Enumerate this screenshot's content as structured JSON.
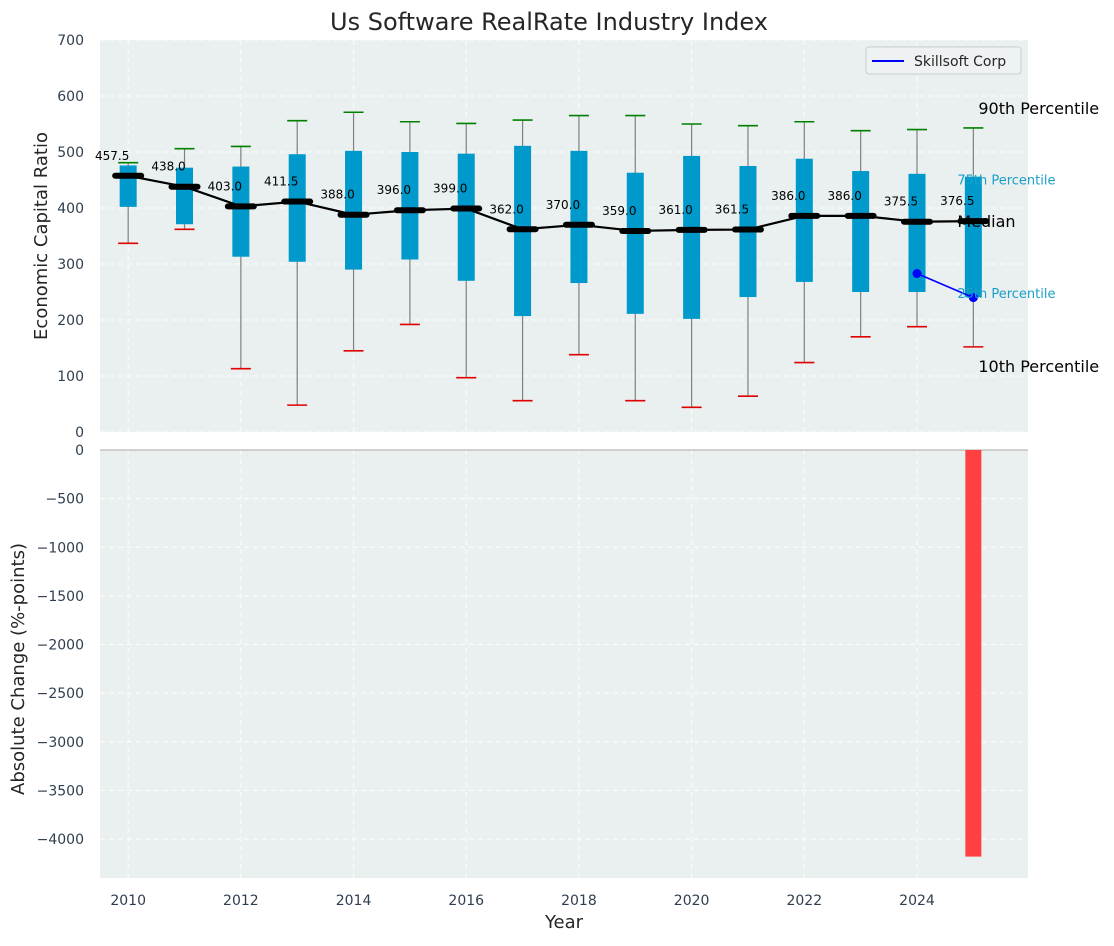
{
  "chart_data": [
    {
      "type": "box",
      "title": "Us Software RealRate Industry Index",
      "ylabel": "Economic Capital Ratio",
      "ylim": [
        0,
        700
      ],
      "yticks": [
        0,
        100,
        200,
        300,
        400,
        500,
        600,
        700
      ],
      "grid": true,
      "years": [
        2010,
        2011,
        2012,
        2013,
        2014,
        2015,
        2016,
        2017,
        2018,
        2019,
        2020,
        2021,
        2022,
        2023,
        2024,
        2025
      ],
      "p10": [
        337,
        362,
        113,
        48,
        145,
        192,
        97,
        56,
        138,
        56,
        44,
        64,
        124,
        170,
        188,
        152
      ],
      "p25": [
        402,
        371,
        313,
        304,
        290,
        308,
        270,
        207,
        266,
        211,
        202,
        241,
        268,
        250,
        250,
        241
      ],
      "median": [
        457.5,
        438.0,
        403.0,
        411.5,
        388.0,
        396.0,
        399.0,
        362.0,
        370.0,
        359.0,
        361.0,
        361.5,
        386.0,
        386.0,
        375.5,
        376.5
      ],
      "p75": [
        476,
        472,
        474,
        496,
        502,
        500,
        497,
        511,
        502,
        463,
        493,
        475,
        488,
        466,
        461,
        456
      ],
      "p90": [
        481,
        506,
        510,
        556,
        571,
        554,
        551,
        557,
        565,
        565,
        550,
        547,
        554,
        538,
        540,
        543
      ],
      "median_labels": [
        "457.5",
        "438.0",
        "403.0",
        "411.5",
        "388.0",
        "396.0",
        "399.0",
        "362.0",
        "370.0",
        "359.0",
        "361.0",
        "361.5",
        "386.0",
        "386.0",
        "375.5",
        "376.5"
      ],
      "series": [
        {
          "name": "Skillsoft Corp",
          "x": [
            2024,
            2025
          ],
          "values": [
            283,
            240
          ]
        }
      ],
      "annotations": {
        "p90": "90th Percentile",
        "p75": "75th Percentile",
        "median": "Median",
        "p25": "25th Percentile",
        "p10": "10th Percentile"
      },
      "legend": {
        "position": "top-right",
        "entries": [
          "Skillsoft Corp"
        ]
      },
      "colors": {
        "box": "#0099cc",
        "median": "#000000",
        "p90_cap": "#008000",
        "p10_cap": "#e00000",
        "whisker": "#808080",
        "series": "#0000ff",
        "background": "#eaeff0"
      }
    },
    {
      "type": "bar",
      "ylabel": "Absolute Change (%-points)",
      "xlabel": "Year",
      "ylim": [
        -4400,
        0
      ],
      "yticks": [
        0,
        -500,
        -1000,
        -1500,
        -2000,
        -2500,
        -3000,
        -3500,
        -4000
      ],
      "ytick_labels": [
        "0",
        "−500",
        "−1000",
        "−1500",
        "−2000",
        "−2500",
        "−3000",
        "−3500",
        "−4000"
      ],
      "xticks": [
        2010,
        2012,
        2014,
        2016,
        2018,
        2020,
        2022,
        2024
      ],
      "xlim": [
        2009.5,
        2025.97
      ],
      "grid": true,
      "x": [
        2025
      ],
      "values": [
        -4180
      ],
      "colors": {
        "bar": "#ff4040",
        "background": "#eaeff0"
      }
    }
  ]
}
